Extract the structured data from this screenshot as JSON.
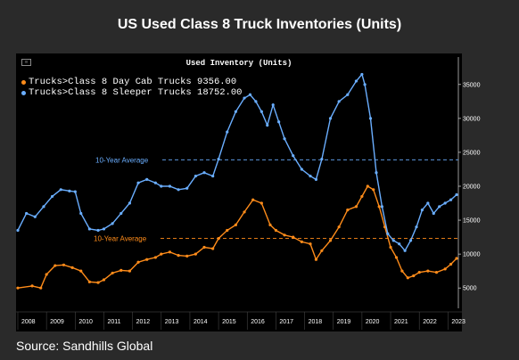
{
  "header": {
    "title": "US Used Class 8 Truck Inventories (Units)"
  },
  "footer": {
    "source": "Source: Sandhills Global"
  },
  "colors": {
    "day_cab": "#ff8c1a",
    "sleeper": "#6aaeff",
    "avg_day_cab": "#ff8c1a",
    "avg_sleeper": "#6aaeff"
  },
  "chart_data": {
    "type": "line",
    "title": "Used Inventory (Units)",
    "grid": false,
    "legend_placement": "top-left",
    "ylim": [
      2000,
      38000
    ],
    "xlim": [
      2008.0,
      2023.3
    ],
    "x_ticks": [
      "2008",
      "2009",
      "2010",
      "2011",
      "2012",
      "2013",
      "2014",
      "2015",
      "2016",
      "2017",
      "2018",
      "2019",
      "2020",
      "2021",
      "2022",
      "2023"
    ],
    "y_ticks": [
      5000,
      10000,
      15000,
      20000,
      25000,
      30000,
      35000
    ],
    "legend": [
      {
        "label": "Trucks>Class 8 Day Cab Trucks",
        "last_value": "9356.00"
      },
      {
        "label": "Trucks>Class 8 Sleeper Trucks",
        "last_value": "18752.00"
      }
    ],
    "averages": [
      {
        "label": "10-Year Average",
        "value": 23900,
        "series": "Sleeper"
      },
      {
        "label": "10-Year Average",
        "value": 12300,
        "series": "Day Cab"
      }
    ],
    "series": [
      {
        "name": "Trucks>Class 8 Day Cab Trucks",
        "x": [
          2008.0,
          2008.5,
          2008.8,
          2009.0,
          2009.3,
          2009.6,
          2009.9,
          2010.2,
          2010.5,
          2010.8,
          2011.0,
          2011.3,
          2011.6,
          2011.9,
          2012.2,
          2012.5,
          2012.8,
          2013.0,
          2013.3,
          2013.6,
          2013.9,
          2014.2,
          2014.5,
          2014.8,
          2015.0,
          2015.3,
          2015.6,
          2015.9,
          2016.2,
          2016.5,
          2016.8,
          2017.0,
          2017.3,
          2017.6,
          2017.9,
          2018.2,
          2018.4,
          2018.6,
          2018.9,
          2019.2,
          2019.5,
          2019.8,
          2020.0,
          2020.2,
          2020.4,
          2020.6,
          2020.8,
          2021.0,
          2021.2,
          2021.4,
          2021.6,
          2021.8,
          2022.0,
          2022.3,
          2022.6,
          2022.9,
          2023.1,
          2023.3
        ],
        "values": [
          5000,
          5300,
          5000,
          7000,
          8300,
          8400,
          8000,
          7500,
          5900,
          5800,
          6200,
          7200,
          7600,
          7500,
          8800,
          9200,
          9500,
          10000,
          10300,
          9800,
          9700,
          10000,
          11000,
          10800,
          12300,
          13500,
          14300,
          16200,
          18000,
          17500,
          14300,
          13500,
          12800,
          12500,
          11800,
          11500,
          9200,
          10500,
          12000,
          14000,
          16500,
          17000,
          18500,
          20000,
          19500,
          17000,
          14000,
          11000,
          9500,
          7500,
          6500,
          6800,
          7300,
          7500,
          7300,
          7800,
          8500,
          9356
        ]
      },
      {
        "name": "Trucks>Class 8 Sleeper Trucks",
        "x": [
          2008.0,
          2008.3,
          2008.6,
          2008.9,
          2009.2,
          2009.5,
          2009.8,
          2010.0,
          2010.2,
          2010.5,
          2010.8,
          2011.0,
          2011.3,
          2011.6,
          2011.9,
          2012.2,
          2012.5,
          2012.8,
          2013.0,
          2013.3,
          2013.6,
          2013.9,
          2014.2,
          2014.5,
          2014.8,
          2015.0,
          2015.3,
          2015.6,
          2015.9,
          2016.1,
          2016.3,
          2016.5,
          2016.7,
          2016.9,
          2017.1,
          2017.3,
          2017.6,
          2017.9,
          2018.2,
          2018.4,
          2018.6,
          2018.9,
          2019.2,
          2019.5,
          2019.8,
          2020.0,
          2020.1,
          2020.3,
          2020.5,
          2020.7,
          2020.9,
          2021.1,
          2021.3,
          2021.5,
          2021.7,
          2021.9,
          2022.1,
          2022.3,
          2022.5,
          2022.7,
          2022.9,
          2023.1,
          2023.3
        ],
        "values": [
          13500,
          16000,
          15500,
          17000,
          18500,
          19500,
          19300,
          19200,
          16000,
          13700,
          13500,
          13700,
          14500,
          16000,
          17500,
          20500,
          21000,
          20500,
          20000,
          20000,
          19500,
          19700,
          21500,
          22000,
          21500,
          24000,
          28000,
          31000,
          33000,
          33500,
          32500,
          31000,
          29000,
          32000,
          29500,
          27000,
          24500,
          22500,
          21500,
          21000,
          24000,
          30000,
          32500,
          33500,
          35500,
          36500,
          35000,
          30000,
          22000,
          17000,
          13000,
          12000,
          11500,
          10500,
          12000,
          14000,
          16500,
          17500,
          16000,
          17000,
          17500,
          18000,
          18752
        ]
      }
    ]
  }
}
